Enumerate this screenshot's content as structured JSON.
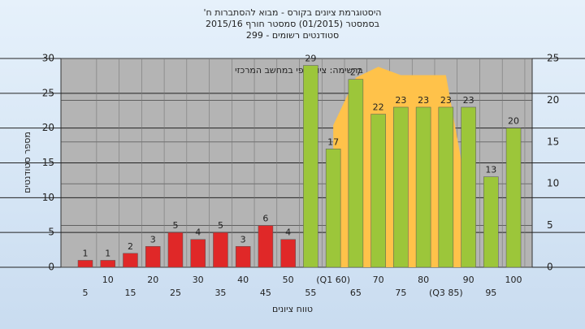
{
  "chart_data": {
    "type": "bar",
    "title": "היסטוגרמת ציונים בקורס - מבוא להסתברות ח'",
    "subtitle": "בסמסטר (01/2015) סמסטר חורף 2015/16",
    "subtitle2": "סטודנטים רשומים - 299",
    "annotation": "ברשימה: ציון סופי במחשב המרכזי",
    "x_label": "טווח ציונים",
    "y_label": "מספר סטודנטים",
    "categories": [
      "5",
      "10",
      "15",
      "20",
      "25",
      "30",
      "35",
      "40",
      "45",
      "50",
      "55",
      "(Q1 60)",
      "65",
      "70",
      "75",
      "80",
      "(Q3 85)",
      "90",
      "95",
      "100"
    ],
    "values": [
      1,
      1,
      2,
      3,
      5,
      4,
      5,
      3,
      6,
      4,
      29,
      17,
      27,
      22,
      23,
      23,
      23,
      23,
      13,
      20
    ],
    "colors": [
      "#e02828",
      "#e02828",
      "#e02828",
      "#e02828",
      "#e02828",
      "#e02828",
      "#e02828",
      "#e02828",
      "#e02828",
      "#e02828",
      "#9cc63a",
      "#9cc63a",
      "#9cc63a",
      "#9cc63a",
      "#9cc63a",
      "#9cc63a",
      "#9cc63a",
      "#9cc63a",
      "#9cc63a",
      "#9cc63a"
    ],
    "area": {
      "axis": "y2",
      "color": "#ffc24a",
      "values": [
        null,
        null,
        null,
        null,
        null,
        null,
        null,
        null,
        null,
        null,
        null,
        17,
        22.7,
        24,
        23,
        23,
        23,
        8,
        null,
        null
      ]
    },
    "ylim": [
      0,
      30
    ],
    "yticks": [
      0,
      5,
      10,
      15,
      20,
      25,
      30
    ],
    "y2lim": [
      0,
      25
    ],
    "y2ticks": [
      0,
      5,
      10,
      15,
      20,
      25
    ],
    "grid": true
  }
}
